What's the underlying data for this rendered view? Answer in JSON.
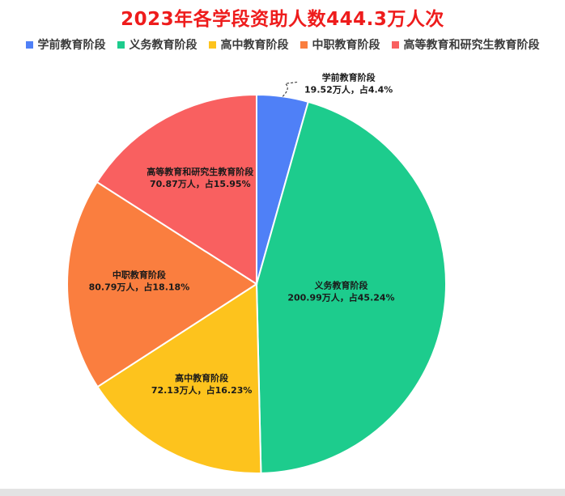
{
  "chart_data": {
    "type": "pie",
    "title": "2023年各学段资助人数444.3万人次",
    "legend_position": "top",
    "series": [
      {
        "name": "学前教育阶段",
        "value": 19.52,
        "percent": 4.4,
        "color": "#4f80f7",
        "label_line1": "学前教育阶段",
        "label_line2": "19.52万人，占4.4%"
      },
      {
        "name": "义务教育阶段",
        "value": 200.99,
        "percent": 45.24,
        "color": "#1dcc8d",
        "label_line1": "义务教育阶段",
        "label_line2": "200.99万人，占45.24%"
      },
      {
        "name": "高中教育阶段",
        "value": 72.13,
        "percent": 16.23,
        "color": "#fdc31d",
        "label_line1": "高中教育阶段",
        "label_line2": "72.13万人，占16.23%"
      },
      {
        "name": "中职教育阶段",
        "value": 80.79,
        "percent": 18.18,
        "color": "#fa7e3f",
        "label_line1": "中职教育阶段",
        "label_line2": "80.79万人，占18.18%"
      },
      {
        "name": "高等教育和研究生教育阶段",
        "value": 70.87,
        "percent": 15.95,
        "color": "#f96060",
        "label_line1": "高等教育和研究生教育阶段",
        "label_line2": "70.87万人，占15.95%"
      }
    ]
  }
}
